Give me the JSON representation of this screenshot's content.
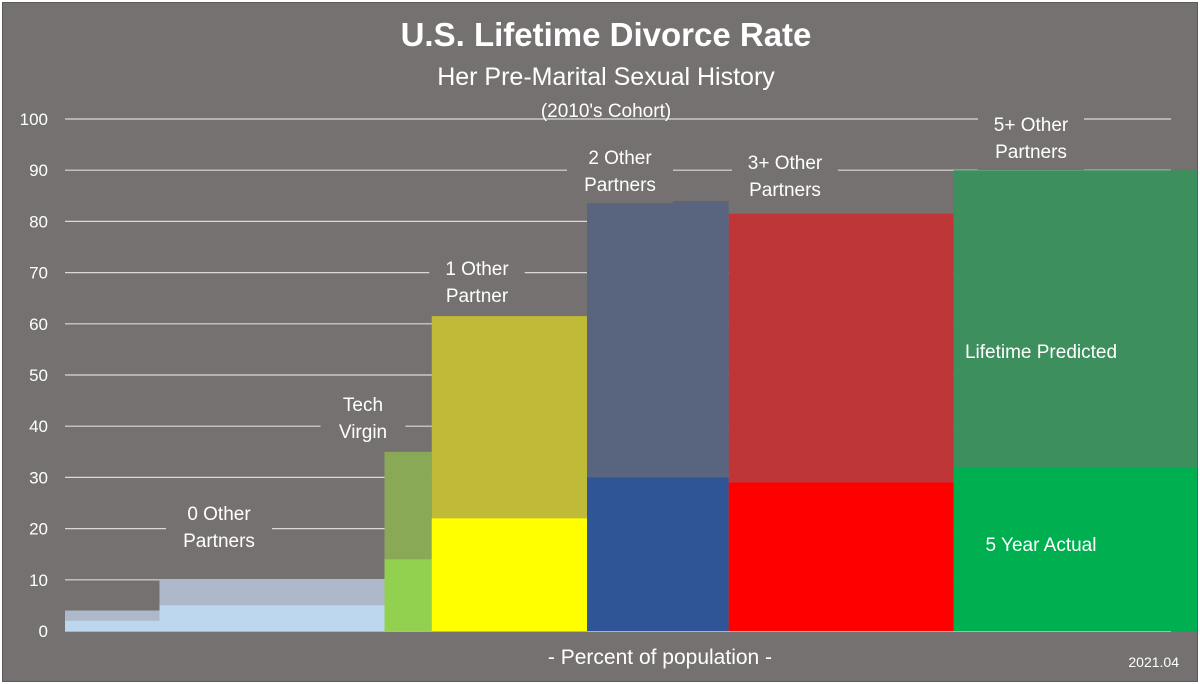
{
  "chart_data": {
    "type": "bar",
    "title": "U.S. Lifetime Divorce Rate",
    "subtitle": "Her Pre-Marital Sexual History",
    "subsubtitle": "(2010's Cohort)",
    "xlabel": "- Percent of population -",
    "ylabel": "",
    "ylim": [
      0,
      100
    ],
    "yticks": [
      "0",
      "10",
      "20",
      "30",
      "40",
      "50",
      "60",
      "70",
      "80",
      "90",
      "100"
    ],
    "grid": true,
    "stamp": "2021.04",
    "series": [
      {
        "name": "Lifetime Predicted"
      },
      {
        "name": "5 Year Actual"
      }
    ],
    "groups": [
      {
        "label": [
          "0 Other",
          "Partners"
        ],
        "bars": [
          {
            "width_pct": 4.2,
            "lifetime": 4,
            "actual": 2
          },
          {
            "width_pct": 10.0,
            "lifetime": 10,
            "actual": 5
          }
        ],
        "lifetime_color": "#adb9ca",
        "actual_color": "#bdd7ee"
      },
      {
        "label": [
          "Tech",
          "Virgin"
        ],
        "bars": [
          {
            "width_pct": 2.1,
            "lifetime": 35,
            "actual": 14
          }
        ],
        "lifetime_color": "#8aa957",
        "actual_color": "#92d050"
      },
      {
        "label": [
          "1 Other",
          "Partner"
        ],
        "bars": [
          {
            "width_pct": 6.9,
            "lifetime": 61.5,
            "actual": 22
          }
        ],
        "lifetime_color": "#bfba38",
        "actual_color": "#ffff00"
      },
      {
        "label": [
          "2 Other",
          "Partners"
        ],
        "bars": [
          {
            "width_pct": 6.3,
            "lifetime": 84,
            "actual": 30
          }
        ],
        "lifetime_color": "#59657f",
        "actual_color": "#2f5597"
      },
      {
        "label": [
          "3+ Other",
          "Partners"
        ],
        "bars": [
          {
            "width_pct": 10.0,
            "lifetime": 81.5,
            "actual": 29
          }
        ],
        "lifetime_color": "#bf3638",
        "actual_color": "#ff0000"
      },
      {
        "label": [
          "5+ Other",
          "Partners"
        ],
        "bars": [
          {
            "width_pct": 13.1,
            "lifetime": 90,
            "actual": 32
          }
        ],
        "lifetime_color": "#3d8f5e",
        "actual_color": "#00b050"
      }
    ]
  }
}
